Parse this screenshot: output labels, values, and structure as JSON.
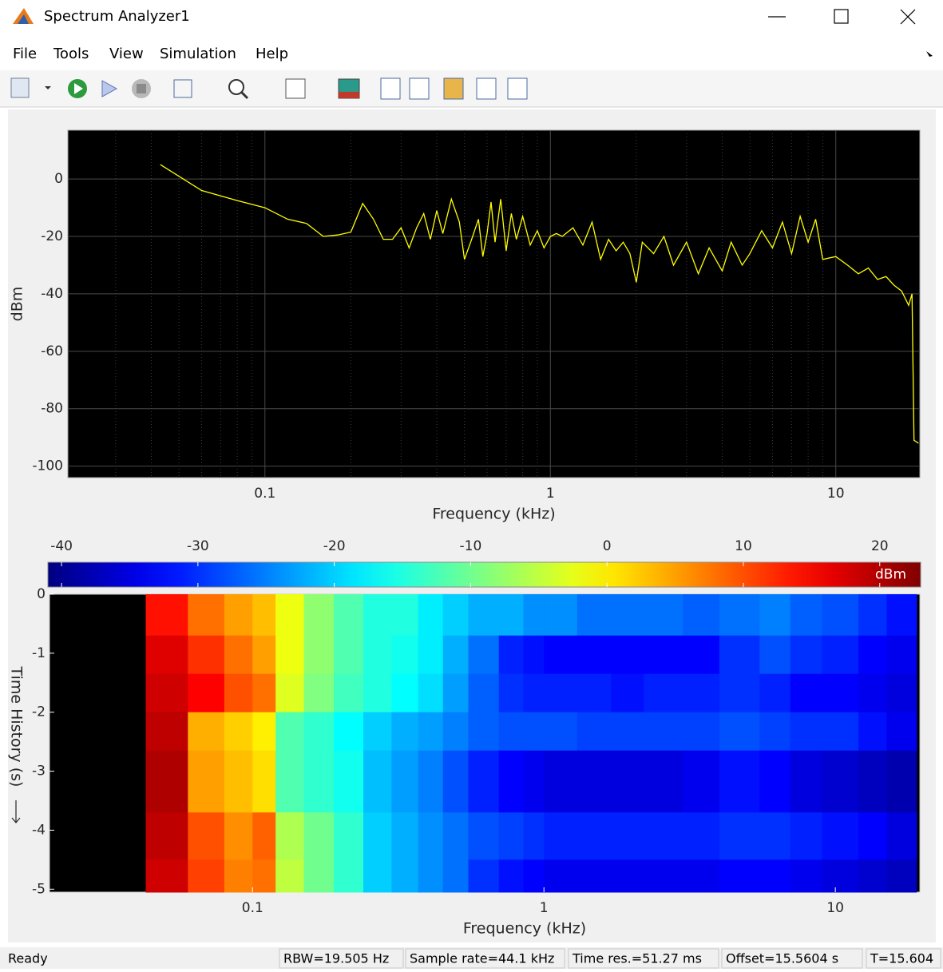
{
  "window": {
    "title": "Spectrum Analyzer1"
  },
  "menu": [
    "File",
    "Tools",
    "View",
    "Simulation",
    "Help"
  ],
  "chart_data": [
    {
      "type": "line",
      "xlabel": "Frequency (kHz)",
      "ylabel": "dBm",
      "log_x": true,
      "grid": true,
      "minor_grid": true,
      "color": "#ffff00",
      "xlim": [
        0.0204,
        19.7
      ],
      "ylim": [
        -104,
        17
      ],
      "xticks": [
        0.1,
        1,
        10
      ],
      "yticks": [
        -100,
        -80,
        -60,
        -40,
        -20,
        0
      ],
      "x": [
        0.043,
        0.06,
        0.08,
        0.1,
        0.12,
        0.14,
        0.16,
        0.18,
        0.2,
        0.22,
        0.24,
        0.26,
        0.28,
        0.3,
        0.32,
        0.34,
        0.36,
        0.38,
        0.4,
        0.42,
        0.45,
        0.48,
        0.5,
        0.53,
        0.56,
        0.58,
        0.6,
        0.62,
        0.64,
        0.67,
        0.7,
        0.73,
        0.76,
        0.8,
        0.85,
        0.9,
        0.95,
        1.0,
        1.05,
        1.1,
        1.2,
        1.3,
        1.4,
        1.5,
        1.6,
        1.7,
        1.8,
        1.9,
        2.0,
        2.1,
        2.3,
        2.5,
        2.7,
        3.0,
        3.3,
        3.6,
        4.0,
        4.3,
        4.7,
        5.0,
        5.5,
        6.0,
        6.5,
        7.0,
        7.5,
        8.0,
        8.5,
        9.0,
        10,
        11,
        12,
        13,
        14,
        15,
        16,
        17,
        18,
        18.5,
        18.8,
        19.5
      ],
      "values": [
        5,
        -4,
        -7.5,
        -10,
        -14,
        -15.5,
        -20,
        -19.5,
        -18.5,
        -8.5,
        -14,
        -21,
        -21,
        -17,
        -24,
        -17,
        -12,
        -21,
        -11,
        -19,
        -7,
        -15,
        -28,
        -21,
        -14,
        -27,
        -19,
        -8,
        -22,
        -7,
        -25,
        -12,
        -21,
        -13,
        -23,
        -18,
        -24,
        -20,
        -19,
        -20,
        -17,
        -23,
        -15,
        -28,
        -21,
        -25,
        -22,
        -26,
        -36,
        -22,
        -26,
        -20,
        -30,
        -22,
        -33,
        -24,
        -32,
        -22,
        -30,
        -26,
        -18,
        -24,
        -15,
        -26,
        -13,
        -22,
        -14,
        -28,
        -27,
        -30,
        -33,
        -31,
        -35,
        -34,
        -37,
        -39,
        -44,
        -40,
        -91,
        -92
      ]
    },
    {
      "type": "heatmap",
      "xlabel": "Frequency (kHz)",
      "ylabel": "Time History (s)",
      "log_x": true,
      "colormap": "jet",
      "colorbar_label": "dBm",
      "clim": [
        -41,
        23
      ],
      "cticks": [
        -40,
        -30,
        -20,
        -10,
        0,
        10,
        20
      ],
      "xlim": [
        0.0201,
        19.5
      ],
      "ylim": [
        -5.05,
        0
      ],
      "xticks": [
        0.1,
        1,
        10
      ],
      "yticks": [
        0,
        -1,
        -2,
        -3,
        -4,
        -5
      ],
      "x_edges": [
        0.0201,
        0.043,
        0.06,
        0.08,
        0.1,
        0.12,
        0.15,
        0.19,
        0.24,
        0.3,
        0.37,
        0.45,
        0.55,
        0.7,
        0.85,
        1,
        1.3,
        1.7,
        2.2,
        3,
        4,
        5.5,
        7,
        9,
        12,
        15,
        19
      ],
      "y_edges": [
        0,
        -0.7,
        -1.35,
        -2,
        -2.65,
        -3.7,
        -4.5,
        -5.05
      ],
      "z": [
        [
          null,
          14,
          8,
          5,
          3,
          -2,
          -8,
          -12,
          -15,
          -15,
          -18,
          -20,
          -22,
          -22,
          -24,
          -24,
          -26,
          -26,
          -26,
          -27,
          -26,
          -25,
          -27,
          -28,
          -30,
          -32
        ],
        [
          null,
          17,
          12,
          8,
          5,
          -2,
          -8,
          -12,
          -15,
          -16,
          -18,
          -22,
          -26,
          -31,
          -32,
          -33,
          -33,
          -33,
          -33,
          -33,
          -30,
          -28,
          -30,
          -31,
          -33,
          -34
        ],
        [
          null,
          18,
          15,
          10,
          8,
          -3,
          -9,
          -13,
          -15,
          -17,
          -19,
          -23,
          -27,
          -30,
          -31,
          -31,
          -31,
          -32,
          -31,
          -31,
          -30,
          -31,
          -33,
          -33,
          -34,
          -35
        ],
        [
          null,
          19,
          4,
          2,
          0,
          -12,
          -14,
          -17,
          -20,
          -22,
          -23,
          -25,
          -27,
          -28,
          -28,
          -28,
          -29,
          -29,
          -29,
          -29,
          -28,
          -29,
          -30,
          -30,
          -32,
          -34
        ],
        [
          null,
          20,
          5,
          3,
          1,
          -12,
          -14,
          -16,
          -21,
          -23,
          -25,
          -28,
          -31,
          -33,
          -34,
          -35,
          -35,
          -35,
          -35,
          -34,
          -32,
          -33,
          -35,
          -36,
          -37,
          -38
        ],
        [
          null,
          19,
          10,
          6,
          9,
          -6,
          -10,
          -14,
          -20,
          -22,
          -24,
          -26,
          -28,
          -29,
          -30,
          -31,
          -31,
          -31,
          -31,
          -31,
          -30,
          -30,
          -31,
          -32,
          -33,
          -35
        ],
        [
          null,
          18,
          11,
          7,
          8,
          -5,
          -10,
          -14,
          -20,
          -22,
          -24,
          -26,
          -30,
          -32,
          -33,
          -34,
          -34,
          -34,
          -34,
          -34,
          -33,
          -33,
          -34,
          -35,
          -36,
          -37
        ]
      ]
    }
  ],
  "status_bar": {
    "left": "Ready",
    "fields": [
      "RBW=19.505 Hz",
      "Sample rate=44.1 kHz",
      "Time res.=51.27 ms",
      "Offset=15.5604 s",
      "T=15.604"
    ]
  }
}
